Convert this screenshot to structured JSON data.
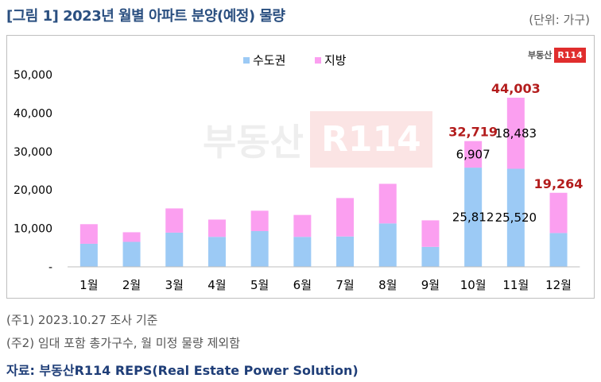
{
  "title": "[그림 1] 2023년 월별 아파트 분양(예정) 물량",
  "unit": "(단위: 가구)",
  "logo": {
    "text": "부동산",
    "box": "R114"
  },
  "notes": [
    "(주1) 2023.10.27 조사 기준",
    "(주2) 임대 포함 총가구수, 월 미정 물량 제외함"
  ],
  "source": "자료: 부동산R114 REPS(Real Estate Power Solution)",
  "colors": {
    "capital": "#9ccaf5",
    "local": "#fb9ff0",
    "total_label": "#b31c1c",
    "title": "#2a4f80"
  },
  "chart_data": {
    "type": "bar",
    "stacked": true,
    "categories": [
      "1월",
      "2월",
      "3월",
      "4월",
      "5월",
      "6월",
      "7월",
      "8월",
      "9월",
      "10월",
      "11월",
      "12월"
    ],
    "series": [
      {
        "name": "수도권",
        "values": [
          6000,
          6500,
          8900,
          7800,
          9300,
          7800,
          7900,
          11300,
          5200,
          25812,
          25520,
          8800
        ]
      },
      {
        "name": "지방",
        "values": [
          5100,
          2500,
          6300,
          4500,
          5300,
          5700,
          10000,
          10300,
          6900,
          6907,
          18483,
          10464
        ]
      }
    ],
    "totals": {
      "10월": "32,719",
      "11월": "44,003",
      "12월": "19,264"
    },
    "value_labels": {
      "10월": [
        "25,812",
        "6,907"
      ],
      "11월": [
        "25,520",
        "18,483"
      ]
    },
    "yticks": [
      "-",
      "10,000",
      "20,000",
      "30,000",
      "40,000",
      "50,000"
    ],
    "ylim": [
      0,
      50000
    ],
    "legend_position": "top-center",
    "grid": false
  }
}
